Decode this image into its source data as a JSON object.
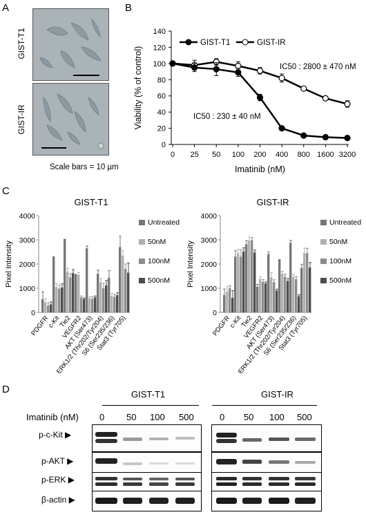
{
  "panel_letters": {
    "a": "A",
    "b": "B",
    "c": "C",
    "d": "D"
  },
  "panel_a": {
    "row_labels": [
      "GIST-T1",
      "GIST-IR"
    ],
    "scale_caption": "Scale bars = 10 µm"
  },
  "panel_b": {
    "annotations": [
      "IC50 : 2800 ± 470 nM",
      "IC50 : 230 ± 40 nM"
    ]
  },
  "panel_c": {
    "titles": [
      "GIST-T1",
      "GIST-IR"
    ]
  },
  "panel_d": {
    "cell_lines": [
      "GIST-T1",
      "GIST-IR"
    ],
    "treatment_label": "Imatinib (nM)",
    "doses": [
      "0",
      "50",
      "100",
      "500"
    ],
    "proteins": [
      "p-c-Kit",
      "p-AKT",
      "p-ERK",
      "β-actin"
    ],
    "arrow": "▶"
  },
  "chart_data": [
    {
      "type": "line",
      "xlabel": "Imatinib (nM)",
      "ylabel": "Viability (% of control)",
      "categories": [
        "0",
        "25",
        "50",
        "100",
        "200",
        "400",
        "800",
        "1600",
        "3200"
      ],
      "ylim": [
        0,
        140
      ],
      "yticks": [
        0,
        20,
        40,
        60,
        80,
        100,
        120,
        140
      ],
      "legend_position": "top-left",
      "series": [
        {
          "name": "GIST-T1",
          "marker": "filled",
          "values": [
            100,
            95,
            93,
            89,
            58,
            20,
            11,
            9,
            8
          ],
          "errors": [
            0,
            5,
            8,
            5,
            4,
            2,
            1,
            1,
            1
          ]
        },
        {
          "name": "GIST-IR",
          "marker": "open",
          "values": [
            100,
            98,
            102,
            97,
            91,
            82,
            69,
            57,
            50
          ],
          "errors": [
            0,
            6,
            4,
            5,
            4,
            5,
            2,
            1,
            4
          ]
        }
      ]
    },
    {
      "type": "bar",
      "title": "GIST-T1",
      "ylabel": "Pixel Intensity",
      "ylim": [
        0,
        4000
      ],
      "yticks": [
        0,
        1000,
        2000,
        3000,
        4000
      ],
      "categories": [
        "PDGFR",
        "c-Kit",
        "Tie2",
        "VEGFR2",
        "AKT  (Ser473)",
        "ERK1/2 (Thr202/Tyr204)",
        "S6 (Ser235/236)",
        "Stat3 (Tyr705)"
      ],
      "legend_position": "right",
      "series": [
        {
          "name": "Untreated",
          "color": "#777777",
          "values": [
            550,
            2320,
            3040,
            1590,
            2650,
            1600,
            1430,
            2700
          ],
          "errors": [
            300,
            0,
            0,
            0,
            100,
            150,
            300,
            450
          ]
        },
        {
          "name": "50nM",
          "color": "#b0b0b0",
          "values": [
            420,
            1050,
            1680,
            1550,
            590,
            1250,
            680,
            2350
          ],
          "errors": [
            150,
            150,
            150,
            100,
            60,
            150,
            100,
            200
          ]
        },
        {
          "name": "100nM",
          "color": "#8c8c8c",
          "values": [
            280,
            980,
            1450,
            620,
            560,
            1000,
            640,
            1800
          ],
          "errors": [
            120,
            150,
            150,
            60,
            80,
            200,
            100,
            200
          ]
        },
        {
          "name": "500nM",
          "color": "#4d4d4d",
          "values": [
            330,
            1030,
            1620,
            560,
            620,
            1120,
            710,
            1640
          ],
          "errors": [
            100,
            150,
            150,
            40,
            60,
            200,
            100,
            400
          ]
        }
      ]
    },
    {
      "type": "bar",
      "title": "GIST-IR",
      "ylabel": "Pixel Intensity",
      "ylim": [
        0,
        4000
      ],
      "yticks": [
        0,
        1000,
        2000,
        3000,
        4000
      ],
      "categories": [
        "PDGFR",
        "c-Kit",
        "Tie2",
        "VEGFR2",
        "AKT  (Ser473)",
        "ERK1/2 (Thr202/Tyr204)",
        "S6 (Ser235/236)",
        "Stat3 (Tyr705)"
      ],
      "legend_position": "right",
      "series": [
        {
          "name": "Untreated",
          "color": "#777777",
          "values": [
            720,
            2300,
            2820,
            1060,
            2410,
            2200,
            2880,
            1840
          ],
          "errors": [
            250,
            250,
            150,
            100,
            100,
            0,
            100,
            150
          ]
        },
        {
          "name": "50nM",
          "color": "#b0b0b0",
          "values": [
            860,
            2450,
            2970,
            1380,
            1450,
            1600,
            1470,
            2460
          ],
          "errors": [
            200,
            150,
            150,
            100,
            200,
            100,
            100,
            200
          ]
        },
        {
          "name": "100nM",
          "color": "#8c8c8c",
          "values": [
            1000,
            2300,
            2990,
            1260,
            1250,
            1480,
            1380,
            2450
          ],
          "errors": [
            100,
            300,
            100,
            100,
            100,
            100,
            100,
            200
          ]
        },
        {
          "name": "500nM",
          "color": "#4d4d4d",
          "values": [
            600,
            2520,
            2480,
            1200,
            900,
            1300,
            670,
            1860
          ],
          "errors": [
            300,
            150,
            100,
            60,
            60,
            100,
            60,
            200
          ]
        }
      ]
    }
  ]
}
